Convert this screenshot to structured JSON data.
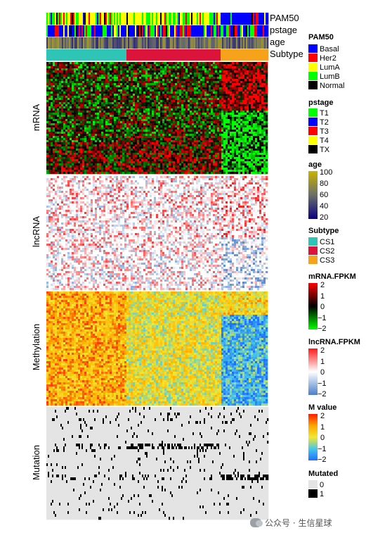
{
  "chart_data": {
    "type": "heatmap",
    "annotation_tracks": [
      {
        "label": "PAM50",
        "categories": [
          "Basal",
          "Her2",
          "LumA",
          "LumB",
          "Normal"
        ],
        "colors": {
          "Basal": "#0000ff",
          "Her2": "#ff0000",
          "LumA": "#ffff00",
          "LumB": "#00ff00",
          "Normal": "#000000"
        }
      },
      {
        "label": "pstage",
        "categories": [
          "T1",
          "T2",
          "T3",
          "T4",
          "TX"
        ],
        "colors": {
          "T1": "#00ff00",
          "T2": "#0000ff",
          "T3": "#ff0000",
          "T4": "#ffff00",
          "TX": "#000000"
        }
      },
      {
        "label": "age",
        "continuous": true,
        "range": [
          20,
          100
        ]
      },
      {
        "label": "Subtype",
        "categories": [
          "CS1",
          "CS2",
          "CS3"
        ],
        "colors": {
          "CS1": "#2ec4b6",
          "CS2": "#dc143c",
          "CS3": "#f7a21b"
        }
      }
    ],
    "subtype_proportions": {
      "CS1": 0.36,
      "CS2": 0.43,
      "CS3": 0.21
    },
    "panels": [
      {
        "label": "mRNA",
        "scale": "mRNA.FPKM",
        "colors": [
          "#00ff00",
          "#000000",
          "#ff0000"
        ]
      },
      {
        "label": "lncRNA",
        "scale": "lncRNA.FPKM",
        "colors": [
          "#5b8bd0",
          "#ffffff",
          "#ff2020"
        ]
      },
      {
        "label": "Methylation",
        "scale": "M value",
        "colors": [
          "#1e6fff",
          "#48c7e8",
          "#f2e830",
          "#ffb000",
          "#ff1a00"
        ]
      },
      {
        "label": "Mutation",
        "scale": "Mutated",
        "colors": [
          "#e4e4e4",
          "#000000"
        ]
      }
    ]
  },
  "legend": {
    "pam50": {
      "title": "PAM50",
      "items": [
        "Basal",
        "Her2",
        "LumA",
        "LumB",
        "Normal"
      ]
    },
    "pstage": {
      "title": "pstage",
      "items": [
        "T1",
        "T2",
        "T3",
        "T4",
        "TX"
      ]
    },
    "age": {
      "title": "age",
      "ticks": [
        "100",
        "80",
        "60",
        "40",
        "20"
      ]
    },
    "subtype": {
      "title": "Subtype",
      "items": [
        "CS1",
        "CS2",
        "CS3"
      ]
    },
    "mrna": {
      "title": "mRNA.FPKM",
      "ticks": [
        "2",
        "1",
        "0",
        "−1",
        "−2"
      ]
    },
    "lncrna": {
      "title": "lncRNA.FPKM",
      "ticks": [
        "2",
        "1",
        "0",
        "−1",
        "−2"
      ]
    },
    "mvalue": {
      "title": "M value",
      "ticks": [
        "2",
        "1",
        "0",
        "−1",
        "−2"
      ]
    },
    "mutated": {
      "title": "Mutated",
      "items": [
        "0",
        "1"
      ]
    }
  },
  "watermark": "公众号 · 生信星球"
}
